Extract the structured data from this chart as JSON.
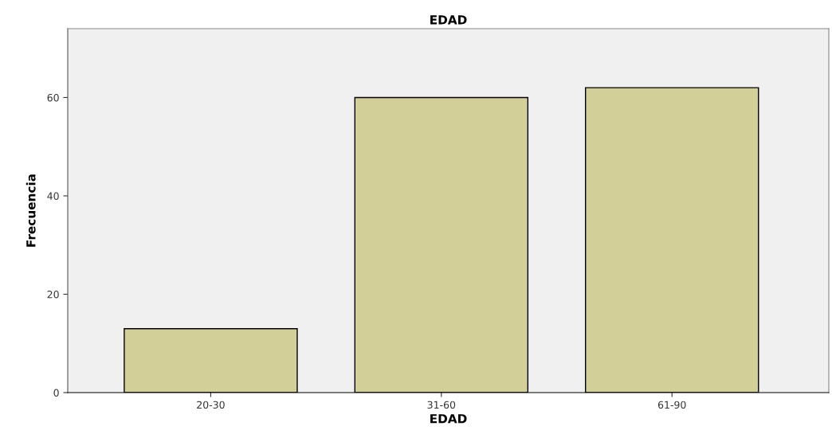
{
  "chart_data": {
    "type": "bar",
    "title": "EDAD",
    "xlabel": "EDAD",
    "ylabel": "Frecuencia",
    "categories": [
      "20-30",
      "31-60",
      "61-90"
    ],
    "values": [
      13,
      60,
      62
    ],
    "color": "#d3cf98",
    "ylim": [
      0,
      74
    ],
    "yticks": [
      0,
      20,
      40,
      60
    ],
    "grid": false,
    "legend": false
  }
}
